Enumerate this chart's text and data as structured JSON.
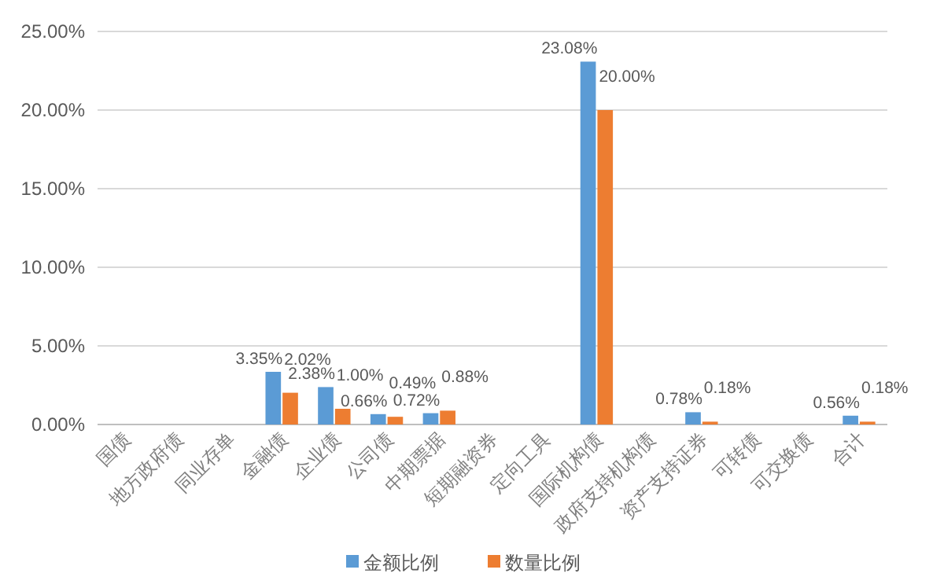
{
  "chart_data": {
    "type": "bar",
    "categories": [
      "国债",
      "地方政府债",
      "同业存单",
      "金融债",
      "企业债",
      "公司债",
      "中期票据",
      "短期融资券",
      "定向工具",
      "国际机构债",
      "政府支持机构债",
      "资产支持证券",
      "可转债",
      "可交换债",
      "合计"
    ],
    "series": [
      {
        "name": "金额比例",
        "color": "#5b9bd5",
        "values": [
          null,
          null,
          null,
          3.35,
          2.38,
          0.66,
          0.72,
          null,
          null,
          23.08,
          null,
          0.78,
          null,
          null,
          0.56
        ],
        "value_labels": [
          null,
          null,
          null,
          "3.35%",
          "2.38%",
          "0.66%",
          "0.72%",
          null,
          null,
          "23.08%",
          null,
          "0.78%",
          null,
          null,
          "0.56%"
        ]
      },
      {
        "name": "数量比例",
        "color": "#ed7d31",
        "values": [
          null,
          null,
          null,
          2.02,
          1.0,
          0.49,
          0.88,
          null,
          null,
          20.0,
          null,
          0.18,
          null,
          null,
          0.18
        ],
        "value_labels": [
          null,
          null,
          null,
          "2.02%",
          "1.00%",
          "0.49%",
          "0.88%",
          null,
          null,
          "20.00%",
          null,
          "0.18%",
          null,
          null,
          "0.18%"
        ]
      }
    ],
    "ylim": [
      0,
      25
    ],
    "yticks": [
      {
        "value": 0,
        "label": "0.00%"
      },
      {
        "value": 5,
        "label": "5.00%"
      },
      {
        "value": 10,
        "label": "10.00%"
      },
      {
        "value": 15,
        "label": "15.00%"
      },
      {
        "value": 20,
        "label": "20.00%"
      },
      {
        "value": 25,
        "label": "25.00%"
      }
    ],
    "grid": "y",
    "legend": "bottom"
  }
}
